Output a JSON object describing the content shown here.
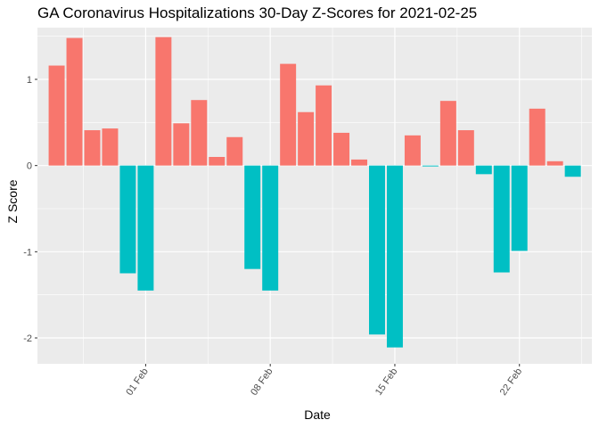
{
  "chart_data": {
    "type": "bar",
    "title": "GA Coronavirus Hospitalizations 30-Day Z-Scores for 2021-02-25",
    "xlabel": "Date",
    "ylabel": "Z Score",
    "ylim": [
      -2.3,
      1.6
    ],
    "yticks": [
      -2,
      -1,
      0,
      1
    ],
    "ytick_labels": [
      "-2",
      "-1",
      "0",
      "1"
    ],
    "xticks": [
      {
        "index": 5,
        "label": "01 Feb"
      },
      {
        "index": 12,
        "label": "08 Feb"
      },
      {
        "index": 19,
        "label": "15 Feb"
      },
      {
        "index": 26,
        "label": "22 Feb"
      }
    ],
    "positive_color": "#F8766D",
    "negative_color": "#00BFC4",
    "categories": [
      "2021-01-27",
      "2021-01-28",
      "2021-01-29",
      "2021-01-30",
      "2021-01-31",
      "2021-02-01",
      "2021-02-02",
      "2021-02-03",
      "2021-02-04",
      "2021-02-05",
      "2021-02-06",
      "2021-02-07",
      "2021-02-08",
      "2021-02-09",
      "2021-02-10",
      "2021-02-11",
      "2021-02-12",
      "2021-02-13",
      "2021-02-14",
      "2021-02-15",
      "2021-02-16",
      "2021-02-17",
      "2021-02-18",
      "2021-02-19",
      "2021-02-20",
      "2021-02-21",
      "2021-02-22",
      "2021-02-23",
      "2021-02-24",
      "2021-02-25"
    ],
    "values": [
      1.16,
      1.48,
      0.41,
      0.43,
      -1.25,
      -1.45,
      1.49,
      0.49,
      0.76,
      0.1,
      0.33,
      -1.2,
      -1.45,
      1.18,
      0.62,
      0.93,
      0.38,
      0.07,
      -1.96,
      -2.11,
      0.35,
      -0.01,
      0.75,
      0.41,
      -0.1,
      -1.24,
      -0.99,
      0.66,
      0.05,
      -0.13
    ]
  }
}
